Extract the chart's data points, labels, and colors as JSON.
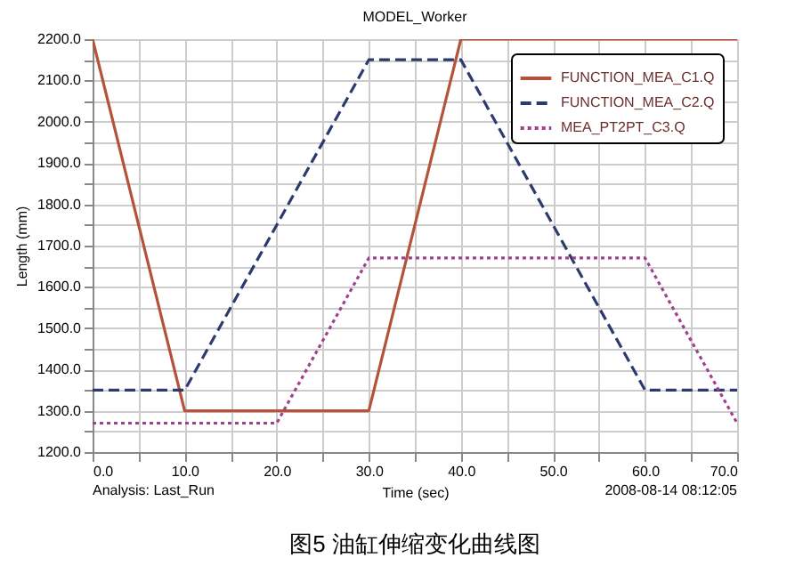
{
  "chart_data": {
    "type": "line",
    "title": "MODEL_Worker",
    "xlabel": "Time (sec)",
    "ylabel": "Length (mm)",
    "series": [
      {
        "name": "FUNCTION_MEA_C1.Q",
        "color": "#b5523b",
        "line_style": "solid",
        "x": [
          0,
          10,
          30,
          40,
          70
        ],
        "values": [
          2200,
          1300,
          1300,
          2200,
          2200
        ]
      },
      {
        "name": "FUNCTION_MEA_C2.Q",
        "color": "#2e3a6e",
        "line_style": "dashed",
        "x": [
          0,
          10,
          30,
          40,
          60,
          70
        ],
        "values": [
          1350,
          1350,
          2150,
          2150,
          1350,
          1350
        ]
      },
      {
        "name": "MEA_PT2PT_C3.Q",
        "color": "#a0408f",
        "line_style": "dotted",
        "x": [
          0,
          20,
          30,
          60,
          70
        ],
        "values": [
          1270,
          1270,
          1670,
          1670,
          1270
        ]
      }
    ],
    "xlim": [
      0,
      70
    ],
    "ylim": [
      1200,
      2200
    ],
    "xticks": [
      {
        "value": 0,
        "label": "0.0"
      },
      {
        "value": 5,
        "label": null
      },
      {
        "value": 10,
        "label": "10.0"
      },
      {
        "value": 15,
        "label": null
      },
      {
        "value": 20,
        "label": "20.0"
      },
      {
        "value": 25,
        "label": null
      },
      {
        "value": 30,
        "label": "30.0"
      },
      {
        "value": 35,
        "label": null
      },
      {
        "value": 40,
        "label": "40.0"
      },
      {
        "value": 45,
        "label": null
      },
      {
        "value": 50,
        "label": "50.0"
      },
      {
        "value": 55,
        "label": null
      },
      {
        "value": 60,
        "label": "60.0"
      },
      {
        "value": 65,
        "label": null
      },
      {
        "value": 70,
        "label": "70.0"
      }
    ],
    "yticks": [
      {
        "value": 1200,
        "label": "1200.0"
      },
      {
        "value": 1250,
        "label": null
      },
      {
        "value": 1300,
        "label": "1300.0"
      },
      {
        "value": 1350,
        "label": null
      },
      {
        "value": 1400,
        "label": "1400.0"
      },
      {
        "value": 1450,
        "label": null
      },
      {
        "value": 1500,
        "label": "1500.0"
      },
      {
        "value": 1550,
        "label": null
      },
      {
        "value": 1600,
        "label": "1600.0"
      },
      {
        "value": 1650,
        "label": null
      },
      {
        "value": 1700,
        "label": "1700.0"
      },
      {
        "value": 1750,
        "label": null
      },
      {
        "value": 1800,
        "label": "1800.0"
      },
      {
        "value": 1850,
        "label": null
      },
      {
        "value": 1900,
        "label": "1900.0"
      },
      {
        "value": 1950,
        "label": null
      },
      {
        "value": 2000,
        "label": "2000.0"
      },
      {
        "value": 2050,
        "label": null
      },
      {
        "value": 2100,
        "label": "2100.0"
      },
      {
        "value": 2150,
        "label": null
      },
      {
        "value": 2200,
        "label": "2200.0"
      }
    ],
    "grid": true,
    "legend": "top right",
    "marker": "none",
    "annotations": [
      "Analysis: Last_Run",
      "2008-08-14 08:12:05",
      "图5  油缸伸缩变化曲线图"
    ]
  }
}
